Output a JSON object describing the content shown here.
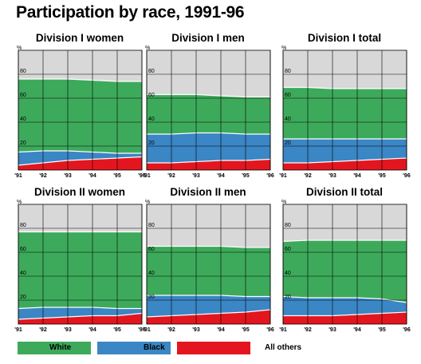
{
  "title": "Participation by race, 1991-96",
  "colors": {
    "white": "#3daa5b",
    "black": "#3b86c4",
    "others": "#e3161f",
    "background": "#d8d8d8",
    "grid": "#000000"
  },
  "legend": [
    {
      "key": "white",
      "label": "White"
    },
    {
      "key": "black",
      "label": "Black"
    },
    {
      "key": "others",
      "label": "All others"
    }
  ],
  "chart_data": [
    {
      "type": "area",
      "stacked": true,
      "title": "Division I women",
      "ylabel": "%",
      "x": [
        "'91",
        "'92",
        "'93",
        "'94",
        "'95",
        "'96"
      ],
      "x_ticks": [
        "'91",
        "'92",
        "'93",
        "'94",
        "'95",
        "'96"
      ],
      "ylim": [
        0,
        100
      ],
      "y_ticks": [
        "20",
        "40",
        "60",
        "80"
      ],
      "grid": true,
      "series": [
        {
          "name": "All others",
          "values": [
            4,
            6,
            8,
            9,
            10,
            11
          ]
        },
        {
          "name": "Black",
          "values": [
            11,
            10,
            8,
            6,
            4,
            3
          ]
        },
        {
          "name": "White",
          "values": [
            61,
            60,
            60,
            60,
            60,
            60
          ]
        }
      ]
    },
    {
      "type": "area",
      "stacked": true,
      "title": "Division I men",
      "ylabel": "%",
      "x": [
        "'91",
        "'92",
        "'93",
        "'94",
        "'95",
        "'96"
      ],
      "x_ticks": [
        "'91",
        "'92",
        "'93",
        "'94",
        "'95",
        "'96"
      ],
      "ylim": [
        0,
        100
      ],
      "y_ticks": [
        "20",
        "40",
        "60",
        "80"
      ],
      "grid": true,
      "series": [
        {
          "name": "All others",
          "values": [
            6,
            6,
            7,
            8,
            8,
            9
          ]
        },
        {
          "name": "Black",
          "values": [
            24,
            24,
            24,
            23,
            22,
            21
          ]
        },
        {
          "name": "White",
          "values": [
            33,
            33,
            32,
            31,
            31,
            31
          ]
        }
      ]
    },
    {
      "type": "area",
      "stacked": true,
      "title": "Division I total",
      "ylabel": "%",
      "x": [
        "'91",
        "'92",
        "'93",
        "'94",
        "'95",
        "'96"
      ],
      "x_ticks": [
        "'91",
        "'92",
        "'93",
        "'94",
        "'95",
        "'96"
      ],
      "ylim": [
        0,
        100
      ],
      "y_ticks": [
        "20",
        "40",
        "60",
        "80"
      ],
      "grid": true,
      "series": [
        {
          "name": "All others",
          "values": [
            6,
            6,
            7,
            8,
            9,
            10
          ]
        },
        {
          "name": "Black",
          "values": [
            20,
            20,
            19,
            18,
            17,
            16
          ]
        },
        {
          "name": "White",
          "values": [
            43,
            43,
            42,
            42,
            42,
            42
          ]
        }
      ]
    },
    {
      "type": "area",
      "stacked": true,
      "title": "Division II women",
      "ylabel": "%",
      "x": [
        "'91",
        "'92",
        "'93",
        "'94",
        "'95",
        "'96"
      ],
      "x_ticks": [
        "'91",
        "'92",
        "'93",
        "'94",
        "'95",
        "'96"
      ],
      "ylim": [
        0,
        100
      ],
      "y_ticks": [
        "20",
        "40",
        "60",
        "80"
      ],
      "grid": true,
      "series": [
        {
          "name": "All others",
          "values": [
            4,
            5,
            6,
            7,
            7,
            9
          ]
        },
        {
          "name": "Black",
          "values": [
            9,
            9,
            8,
            7,
            6,
            4
          ]
        },
        {
          "name": "White",
          "values": [
            64,
            63,
            63,
            63,
            64,
            64
          ]
        }
      ]
    },
    {
      "type": "area",
      "stacked": true,
      "title": "Division II men",
      "ylabel": "%",
      "x": [
        "'91",
        "'92",
        "'93",
        "'94",
        "'95",
        "'96"
      ],
      "x_ticks": [
        "'91",
        "'92",
        "'93",
        "'94",
        "'95",
        "'96"
      ],
      "ylim": [
        0,
        100
      ],
      "y_ticks": [
        "20",
        "40",
        "60",
        "80"
      ],
      "grid": true,
      "series": [
        {
          "name": "All others",
          "values": [
            6,
            7,
            8,
            9,
            10,
            12
          ]
        },
        {
          "name": "Black",
          "values": [
            18,
            17,
            16,
            15,
            13,
            11
          ]
        },
        {
          "name": "White",
          "values": [
            41,
            41,
            41,
            41,
            41,
            41
          ]
        }
      ]
    },
    {
      "type": "area",
      "stacked": true,
      "title": "Division II total",
      "ylabel": "%",
      "x": [
        "'91",
        "'92",
        "'93",
        "'94",
        "'95",
        "'96"
      ],
      "x_ticks": [
        "'91",
        "'92",
        "'93",
        "'94",
        "'95",
        "'96"
      ],
      "ylim": [
        0,
        100
      ],
      "y_ticks": [
        "20",
        "40",
        "60",
        "80"
      ],
      "grid": true,
      "series": [
        {
          "name": "All others",
          "values": [
            7,
            7,
            7,
            8,
            9,
            10
          ]
        },
        {
          "name": "Black",
          "values": [
            16,
            15,
            15,
            14,
            12,
            8
          ]
        },
        {
          "name": "White",
          "values": [
            46,
            48,
            48,
            48,
            49,
            52
          ]
        }
      ]
    }
  ]
}
